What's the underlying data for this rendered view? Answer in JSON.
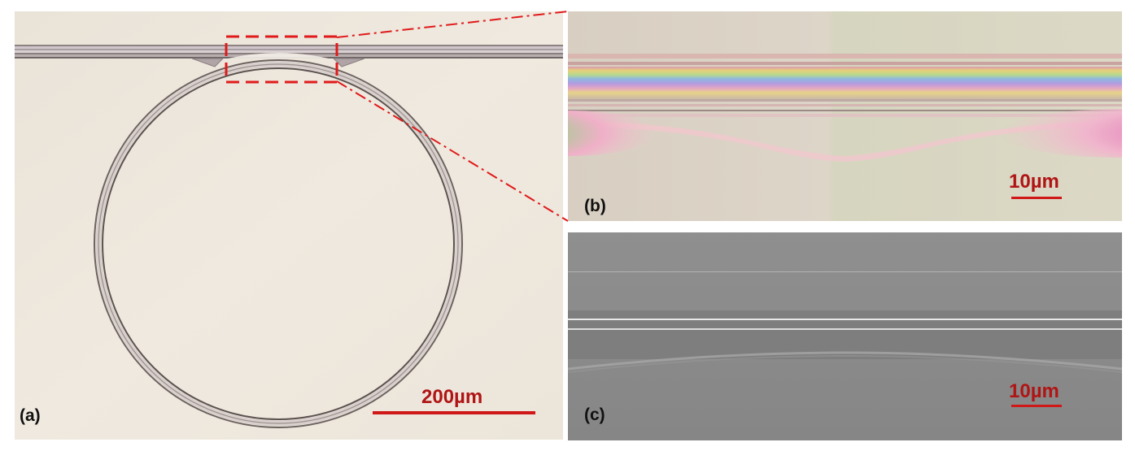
{
  "figure": {
    "panel_a": {
      "label": "(a)",
      "scale_bar": "200µm",
      "description_icon": "ring-resonator-micrograph"
    },
    "panel_b": {
      "label": "(b)",
      "scale_bar": "10µm",
      "description_icon": "optical-zoom-coupling-region"
    },
    "panel_c": {
      "label": "(c)",
      "scale_bar": "10µm",
      "description_icon": "sem-zoom-coupling-region"
    },
    "colors": {
      "annotation_red": "#e01a1a",
      "scale_text": "#b01515",
      "optical_background": "#ece6dc",
      "sem_background": "#8a8a8a"
    }
  }
}
